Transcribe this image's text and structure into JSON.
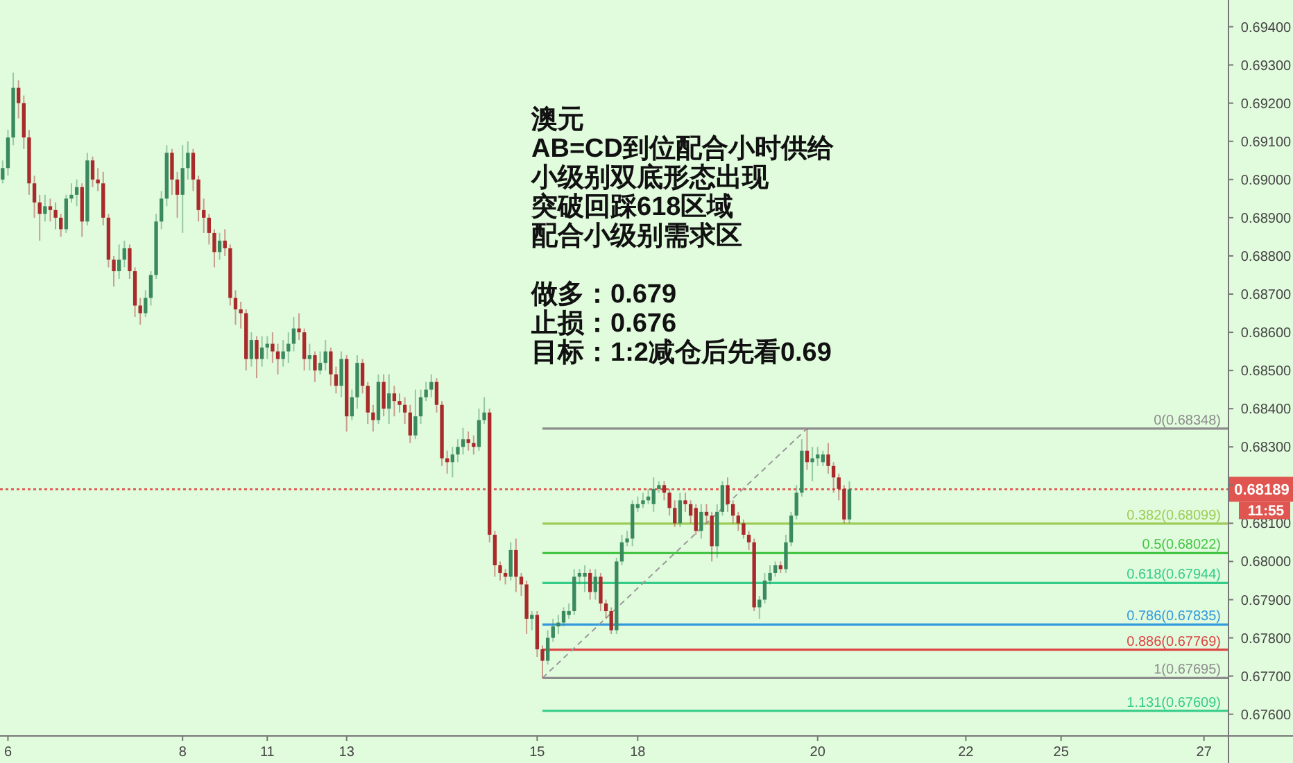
{
  "chart_data": {
    "type": "candlestick",
    "annotations": [
      "澳元",
      "AB=CD到位配合小时供给",
      "小级别双底形态出现",
      "突破回踩618区域",
      "配合小级别需求区",
      "做多：0.679",
      "止损：0.676",
      "目标：1:2减仓后先看0.69",
      "11:55"
    ],
    "colors": [
      "#3b8a5f",
      "#3b8a5f",
      "#3b8a5f",
      "#a82a2a",
      "#a82a2a",
      "#a82a2a",
      "#a82a2a",
      "#a82a2a",
      "#3b8a5f",
      "#a82a2a",
      "#a82a2a",
      "#a82a2a",
      "#3b8a5f",
      "#3b8a5f",
      "#3b8a5f",
      "#a82a2a",
      "#3b8a5f",
      "#a82a2a",
      "#a82a2a",
      "#a82a2a",
      "#a82a2a",
      "#a82a2a",
      "#3b8a5f",
      "#3b8a5f",
      "#a82a2a",
      "#a82a2a",
      "#a82a2a",
      "#3b8a5f",
      "#3b8a5f",
      "#3b8a5f",
      "#3b8a5f",
      "#3b8a5f",
      "#a82a2a",
      "#a82a2a",
      "#3b8a5f",
      "#3b8a5f",
      "#a82a2a",
      "#a82a2a",
      "#a82a2a",
      "#a82a2a",
      "#a82a2a",
      "#3b8a5f",
      "#a82a2a",
      "#a82a2a",
      "#a82a2a",
      "#a82a2a",
      "#a82a2a",
      "#3b8a5f",
      "#a82a2a",
      "#3b8a5f",
      "#3b8a5f",
      "#a82a2a",
      "#a82a2a",
      "#3b8a5f",
      "#3b8a5f",
      "#3b8a5f",
      "#a82a2a",
      "#a82a2a",
      "#3b8a5f",
      "#a82a2a",
      "#3b8a5f",
      "#3b8a5f",
      "#a82a2a",
      "#a82a2a",
      "#3b8a5f",
      "#a82a2a",
      "#3b8a5f",
      "#3b8a5f",
      "#a82a2a",
      "#a82a2a",
      "#a82a2a",
      "#3b8a5f",
      "#a82a2a",
      "#3b8a5f",
      "#a82a2a",
      "#a82a2a",
      "#a82a2a",
      "#a82a2a",
      "#3b8a5f",
      "#3b8a5f",
      "#3b8a5f",
      "#3b8a5f",
      "#a82a2a",
      "#a82a2a",
      "#a82a2a",
      "#3b8a5f",
      "#3b8a5f",
      "#3b8a5f",
      "#a82a2a",
      "#a82a2a",
      "#3b8a5f",
      "#3b8a5f",
      "#a82a2a",
      "#a82a2a",
      "#a82a2a",
      "#a82a2a",
      "#3b8a5f",
      "#a82a2a",
      "#a82a2a",
      "#a82a2a",
      "#3b8a5f",
      "#a82a2a",
      "#a82a2a",
      "#3b8a5f",
      "#3b8a5f",
      "#3b8a5f",
      "#3b8a5f",
      "#3b8a5f",
      "#3b8a5f",
      "#3b8a5f",
      "#3b8a5f",
      "#a82a2a",
      "#3b8a5f",
      "#a82a2a",
      "#a82a2a",
      "#a82a2a",
      "#3b8a5f",
      "#3b8a5f",
      "#3b8a5f",
      "#3b8a5f",
      "#3b8a5f",
      "#3b8a5f",
      "#3b8a5f",
      "#3b8a5f",
      "#3b8a5f",
      "#a82a2a",
      "#a82a2a",
      "#a82a2a",
      "#3b8a5f",
      "#a82a2a",
      "#a82a2a",
      "#a82a2a",
      "#3b8a5f",
      "#a82a2a",
      "#a82a2a",
      "#3b8a5f",
      "#3b8a5f",
      "#a82a2a",
      "#a82a2a",
      "#a82a2a",
      "#a82a2a",
      "#a82a2a",
      "#a82a2a",
      "#3b8a5f",
      "#3b8a5f",
      "#3b8a5f",
      "#3b8a5f",
      "#a82a2a",
      "#3b8a5f",
      "#3b8a5f",
      "#3b8a5f",
      "#3b8a5f",
      "#a82a2a",
      "#3b8a5f",
      "#3b8a5f",
      "#3b8a5f",
      "#a82a2a",
      "#a82a2a",
      "#a82a2a",
      "#a82a2a",
      "#3b8a5f",
      null,
      null,
      null,
      null,
      null,
      null,
      null,
      null,
      null,
      null,
      null,
      null,
      null,
      null,
      null,
      null,
      null,
      null,
      null,
      null,
      null,
      null,
      null,
      null,
      null,
      null,
      null,
      null,
      null,
      null,
      null,
      null,
      null,
      null,
      null,
      null,
      null,
      null,
      null,
      null,
      null,
      null,
      null,
      null,
      null,
      null,
      null,
      null,
      null,
      null,
      null,
      null,
      null,
      null,
      null,
      null,
      null,
      null,
      null,
      null,
      null,
      null,
      null,
      null,
      null,
      null,
      null,
      null,
      null,
      null,
      null
    ],
    "categories": [
      null,
      "6",
      null,
      null,
      null,
      null,
      null,
      null,
      null,
      null,
      null,
      null,
      null,
      null,
      null,
      null,
      null,
      null,
      null,
      null,
      null,
      null,
      null,
      null,
      null,
      null,
      null,
      null,
      null,
      null,
      null,
      null,
      null,
      null,
      "8",
      null,
      null,
      null,
      null,
      null,
      null,
      null,
      null,
      null,
      null,
      null,
      null,
      null,
      null,
      null,
      "11",
      null,
      null,
      null,
      null,
      null,
      null,
      null,
      null,
      null,
      null,
      null,
      null,
      null,
      null,
      "13",
      null,
      null,
      null,
      null,
      null,
      null,
      null,
      null,
      null,
      null,
      null,
      null,
      null,
      null,
      null,
      null,
      null,
      null,
      null,
      null,
      null,
      null,
      null,
      null,
      null,
      null,
      null,
      null,
      null,
      null,
      null,
      null,
      null,
      null,
      null,
      "15",
      null,
      null,
      null,
      null,
      null,
      null,
      null,
      null,
      null,
      null,
      null,
      null,
      null,
      null,
      null,
      null,
      null,
      null,
      "18",
      null,
      null,
      null,
      null,
      null,
      null,
      null,
      null,
      null,
      null,
      null,
      null,
      null,
      null,
      null,
      null,
      null,
      null,
      null,
      null,
      null,
      null,
      null,
      null,
      null,
      null,
      null,
      null,
      null,
      null,
      null,
      null,
      null,
      "20",
      null,
      null,
      null,
      null,
      null,
      null,
      null,
      null,
      null,
      null,
      null,
      null,
      null,
      null,
      null,
      null,
      null,
      null,
      null,
      null,
      null,
      null,
      null,
      null,
      null,
      null,
      null,
      "22",
      null,
      null,
      null,
      null,
      null,
      null,
      null,
      null,
      null,
      null,
      null,
      null,
      null,
      null,
      null,
      null,
      null,
      "25",
      null,
      null,
      null,
      null,
      null,
      null,
      null,
      null,
      null,
      null,
      null,
      null,
      null,
      null,
      null,
      null,
      null,
      null,
      null,
      null,
      null,
      null,
      null,
      null,
      null,
      null,
      "27",
      null,
      null,
      null,
      null
    ],
    "ohlc": [
      [
        0.69,
        0.6905,
        0.6899,
        0.6903
      ],
      [
        0.6903,
        0.6913,
        0.6901,
        0.6911
      ],
      [
        0.6911,
        0.6928,
        0.6909,
        0.6924
      ],
      [
        0.6924,
        0.6926,
        0.6916,
        0.692
      ],
      [
        0.692,
        0.6922,
        0.6908,
        0.6911
      ],
      [
        0.6911,
        0.6913,
        0.6896,
        0.6899
      ],
      [
        0.6899,
        0.6901,
        0.689,
        0.6894
      ],
      [
        0.6894,
        0.6896,
        0.6884,
        0.6891
      ],
      [
        0.6891,
        0.6896,
        0.6889,
        0.6893
      ],
      [
        0.6893,
        0.6895,
        0.6889,
        0.6892
      ],
      [
        0.6892,
        0.6894,
        0.6887,
        0.689
      ],
      [
        0.689,
        0.6891,
        0.6885,
        0.6887
      ],
      [
        0.6887,
        0.6896,
        0.6886,
        0.6895
      ],
      [
        0.6895,
        0.6899,
        0.6894,
        0.6896
      ],
      [
        0.6896,
        0.69,
        0.6893,
        0.6898
      ],
      [
        0.6898,
        0.6899,
        0.6885,
        0.6889
      ],
      [
        0.6889,
        0.6907,
        0.6888,
        0.6905
      ],
      [
        0.6905,
        0.6906,
        0.6898,
        0.69
      ],
      [
        0.69,
        0.6903,
        0.6897,
        0.6899
      ],
      [
        0.6899,
        0.6902,
        0.6888,
        0.689
      ],
      [
        0.689,
        0.6891,
        0.6877,
        0.6879
      ],
      [
        0.6879,
        0.688,
        0.6872,
        0.6876
      ],
      [
        0.6876,
        0.6883,
        0.6874,
        0.6879
      ],
      [
        0.6879,
        0.6884,
        0.6877,
        0.6882
      ],
      [
        0.6882,
        0.6883,
        0.6874,
        0.6876
      ],
      [
        0.6876,
        0.6877,
        0.6864,
        0.6867
      ],
      [
        0.6867,
        0.6869,
        0.6862,
        0.6865
      ],
      [
        0.6865,
        0.6871,
        0.6864,
        0.6869
      ],
      [
        0.6869,
        0.6876,
        0.6867,
        0.6875
      ],
      [
        0.6875,
        0.6891,
        0.6874,
        0.6889
      ],
      [
        0.6889,
        0.6897,
        0.6887,
        0.6895
      ],
      [
        0.6895,
        0.6909,
        0.6893,
        0.6907
      ],
      [
        0.6907,
        0.6908,
        0.6896,
        0.69
      ],
      [
        0.69,
        0.6902,
        0.689,
        0.6896
      ],
      [
        0.6896,
        0.6909,
        0.6886,
        0.6903
      ],
      [
        0.6903,
        0.691,
        0.69,
        0.6907
      ],
      [
        0.6907,
        0.6908,
        0.6897,
        0.69
      ],
      [
        0.69,
        0.6901,
        0.6889,
        0.6892
      ],
      [
        0.6892,
        0.6895,
        0.6886,
        0.689
      ],
      [
        0.689,
        0.6891,
        0.6883,
        0.6886
      ],
      [
        0.6886,
        0.6887,
        0.6877,
        0.6881
      ],
      [
        0.6881,
        0.6886,
        0.6879,
        0.6884
      ],
      [
        0.6884,
        0.6887,
        0.688,
        0.6882
      ],
      [
        0.6882,
        0.6883,
        0.6867,
        0.6869
      ],
      [
        0.6869,
        0.6871,
        0.6862,
        0.6866
      ],
      [
        0.6866,
        0.6868,
        0.6861,
        0.6865
      ],
      [
        0.6865,
        0.6866,
        0.685,
        0.6853
      ],
      [
        0.6853,
        0.686,
        0.6851,
        0.6858
      ],
      [
        0.6858,
        0.6859,
        0.6848,
        0.6853
      ],
      [
        0.6853,
        0.6859,
        0.6851,
        0.6856
      ],
      [
        0.6856,
        0.6859,
        0.6853,
        0.6857
      ],
      [
        0.6857,
        0.686,
        0.6852,
        0.6855
      ],
      [
        0.6855,
        0.6857,
        0.6849,
        0.6853
      ],
      [
        0.6853,
        0.6858,
        0.6851,
        0.6855
      ],
      [
        0.6855,
        0.686,
        0.6852,
        0.6857
      ],
      [
        0.6857,
        0.6864,
        0.6855,
        0.6861
      ],
      [
        0.6861,
        0.6865,
        0.6858,
        0.686
      ],
      [
        0.686,
        0.6861,
        0.685,
        0.6853
      ],
      [
        0.6853,
        0.6857,
        0.685,
        0.6854
      ],
      [
        0.6854,
        0.6855,
        0.6847,
        0.685
      ],
      [
        0.685,
        0.6855,
        0.6849,
        0.6852
      ],
      [
        0.6852,
        0.6858,
        0.685,
        0.6855
      ],
      [
        0.6855,
        0.6856,
        0.6846,
        0.6849
      ],
      [
        0.6849,
        0.6851,
        0.6844,
        0.6846
      ],
      [
        0.6846,
        0.6855,
        0.6843,
        0.6853
      ],
      [
        0.6853,
        0.6854,
        0.6834,
        0.6838
      ],
      [
        0.6838,
        0.6845,
        0.6837,
        0.6843
      ],
      [
        0.6843,
        0.6854,
        0.684,
        0.6852
      ],
      [
        0.6852,
        0.6853,
        0.6844,
        0.6846
      ],
      [
        0.6846,
        0.6847,
        0.6836,
        0.6839
      ],
      [
        0.6839,
        0.6841,
        0.6834,
        0.6837
      ],
      [
        0.6837,
        0.6849,
        0.6836,
        0.6847
      ],
      [
        0.6847,
        0.6849,
        0.6838,
        0.684
      ],
      [
        0.684,
        0.6849,
        0.6836,
        0.6844
      ],
      [
        0.6844,
        0.6846,
        0.6838,
        0.6842
      ],
      [
        0.6842,
        0.6844,
        0.6839,
        0.6841
      ],
      [
        0.6841,
        0.6843,
        0.6836,
        0.6839
      ],
      [
        0.6839,
        0.6841,
        0.6831,
        0.6833
      ],
      [
        0.6833,
        0.6845,
        0.6832,
        0.6838
      ],
      [
        0.6838,
        0.6845,
        0.6836,
        0.6843
      ],
      [
        0.6843,
        0.6847,
        0.6842,
        0.6845
      ],
      [
        0.6845,
        0.6849,
        0.6843,
        0.6847
      ],
      [
        0.6847,
        0.6848,
        0.6839,
        0.6841
      ],
      [
        0.6841,
        0.6842,
        0.6825,
        0.6827
      ],
      [
        0.6827,
        0.6829,
        0.6823,
        0.6826
      ],
      [
        0.6826,
        0.683,
        0.6822,
        0.6828
      ],
      [
        0.6828,
        0.6832,
        0.6826,
        0.683
      ],
      [
        0.683,
        0.6835,
        0.6828,
        0.6832
      ],
      [
        0.6832,
        0.6834,
        0.6829,
        0.6831
      ],
      [
        0.6831,
        0.6833,
        0.6828,
        0.683
      ],
      [
        0.683,
        0.684,
        0.6829,
        0.6837
      ],
      [
        0.6837,
        0.6843,
        0.6836,
        0.6839
      ],
      [
        0.6839,
        0.684,
        0.6805,
        0.6807
      ],
      [
        0.6807,
        0.6808,
        0.6796,
        0.6799
      ],
      [
        0.6799,
        0.68,
        0.6795,
        0.6797
      ],
      [
        0.6797,
        0.6798,
        0.6794,
        0.6796
      ],
      [
        0.6796,
        0.6805,
        0.6795,
        0.6803
      ],
      [
        0.6803,
        0.6806,
        0.6792,
        0.6796
      ],
      [
        0.6796,
        0.6797,
        0.6791,
        0.6794
      ],
      [
        0.6794,
        0.6795,
        0.6781,
        0.6785
      ],
      [
        0.6785,
        0.6787,
        0.6782,
        0.6786
      ],
      [
        0.6786,
        0.6787,
        0.6775,
        0.6777
      ],
      [
        0.6777,
        0.6778,
        0.67695,
        0.6774
      ],
      [
        0.6774,
        0.6782,
        0.6773,
        0.678
      ],
      [
        0.678,
        0.6785,
        0.6779,
        0.6783
      ],
      [
        0.6783,
        0.6786,
        0.6781,
        0.6784
      ],
      [
        0.6784,
        0.6788,
        0.6783,
        0.6787
      ],
      [
        0.6786,
        0.6789,
        0.6785,
        0.6787
      ],
      [
        0.6787,
        0.6798,
        0.6786,
        0.6796
      ],
      [
        0.6796,
        0.6798,
        0.6794,
        0.6797
      ],
      [
        0.6796,
        0.6799,
        0.6792,
        0.6797
      ],
      [
        0.6797,
        0.6798,
        0.679,
        0.6792
      ],
      [
        0.6792,
        0.6798,
        0.679,
        0.6796
      ],
      [
        0.6796,
        0.6797,
        0.6787,
        0.6789
      ],
      [
        0.6789,
        0.679,
        0.6785,
        0.6787
      ],
      [
        0.6787,
        0.6788,
        0.6781,
        0.6782
      ],
      [
        0.6782,
        0.6801,
        0.6781,
        0.68
      ],
      [
        0.68,
        0.6807,
        0.6799,
        0.6805
      ],
      [
        0.6805,
        0.6808,
        0.6804,
        0.6806
      ],
      [
        0.6806,
        0.6816,
        0.6804,
        0.6815
      ],
      [
        0.6814,
        0.6817,
        0.6813,
        0.6815
      ],
      [
        0.6815,
        0.6818,
        0.6814,
        0.6816
      ],
      [
        0.6816,
        0.6819,
        0.6815,
        0.6817
      ],
      [
        0.6815,
        0.6822,
        0.6813,
        0.6819
      ],
      [
        0.6819,
        0.6821,
        0.6818,
        0.682
      ],
      [
        0.682,
        0.6821,
        0.6816,
        0.6818
      ],
      [
        0.6818,
        0.6819,
        0.6812,
        0.6814
      ],
      [
        0.6814,
        0.6816,
        0.6809,
        0.681
      ],
      [
        0.681,
        0.6818,
        0.6809,
        0.6816
      ],
      [
        0.6816,
        0.6818,
        0.6813,
        0.6815
      ],
      [
        0.6815,
        0.6816,
        0.681,
        0.6812
      ],
      [
        0.6814,
        0.6815,
        0.6807,
        0.6808
      ],
      [
        0.6808,
        0.6815,
        0.6806,
        0.6813
      ],
      [
        0.6813,
        0.6815,
        0.681,
        0.6812
      ],
      [
        0.6812,
        0.6813,
        0.68,
        0.6804
      ],
      [
        0.6804,
        0.6815,
        0.6801,
        0.6813
      ],
      [
        0.6813,
        0.6821,
        0.6812,
        0.682
      ],
      [
        0.682,
        0.6822,
        0.6813,
        0.6815
      ],
      [
        0.6815,
        0.6816,
        0.681,
        0.6812
      ],
      [
        0.6812,
        0.6813,
        0.6808,
        0.681
      ],
      [
        0.681,
        0.6811,
        0.6806,
        0.6807
      ],
      [
        0.6807,
        0.6808,
        0.6803,
        0.6805
      ],
      [
        0.6805,
        0.6806,
        0.6787,
        0.6788
      ],
      [
        0.6788,
        0.6791,
        0.6785,
        0.679
      ],
      [
        0.679,
        0.6797,
        0.6789,
        0.6795
      ],
      [
        0.6795,
        0.6799,
        0.6794,
        0.6797
      ],
      [
        0.6797,
        0.68,
        0.6796,
        0.6799
      ],
      [
        0.6799,
        0.68,
        0.6797,
        0.6798
      ],
      [
        0.6798,
        0.6807,
        0.6797,
        0.6805
      ],
      [
        0.6805,
        0.6813,
        0.6804,
        0.6812
      ],
      [
        0.6812,
        0.682,
        0.6811,
        0.6818
      ],
      [
        0.6818,
        0.6832,
        0.6817,
        0.6829
      ],
      [
        0.6829,
        0.68348,
        0.6824,
        0.6826
      ],
      [
        0.6826,
        0.683,
        0.6821,
        0.6827
      ],
      [
        0.6827,
        0.683,
        0.6825,
        0.6828
      ],
      [
        0.6826,
        0.6829,
        0.6825,
        0.6828
      ],
      [
        0.6828,
        0.6831,
        0.6823,
        0.6825
      ],
      [
        0.6825,
        0.6826,
        0.6818,
        0.6822
      ],
      [
        0.6822,
        0.6823,
        0.6816,
        0.6819
      ],
      [
        0.6819,
        0.682,
        0.681,
        0.6811
      ],
      [
        0.6811,
        0.6821,
        0.681,
        0.68189
      ],
      null,
      null,
      null,
      null,
      null,
      null,
      null,
      null,
      null,
      null,
      null,
      null,
      null,
      null,
      null,
      null,
      null,
      null,
      null,
      null,
      null,
      null,
      null,
      null,
      null,
      null,
      null,
      null,
      null,
      null,
      null,
      null,
      null,
      null,
      null,
      null,
      null,
      null,
      null,
      null,
      null,
      null,
      null,
      null,
      null,
      null,
      null,
      null,
      null,
      null,
      null,
      null,
      null,
      null,
      null,
      null,
      null,
      null,
      null,
      null,
      null,
      null,
      null,
      null,
      null,
      null,
      null,
      null,
      null,
      null,
      null
    ],
    "series": [
      {
        "type": "line",
        "color": "#9a9a9a",
        "line_style": "dashed",
        "values": [
          null,
          null,
          null,
          null,
          null,
          null,
          null,
          null,
          null,
          null,
          null,
          null,
          null,
          null,
          null,
          null,
          null,
          null,
          null,
          null,
          null,
          null,
          null,
          null,
          null,
          null,
          null,
          null,
          null,
          null,
          null,
          null,
          null,
          null,
          null,
          null,
          null,
          null,
          null,
          null,
          null,
          null,
          null,
          null,
          null,
          null,
          null,
          null,
          null,
          null,
          null,
          null,
          null,
          null,
          null,
          null,
          null,
          null,
          null,
          null,
          null,
          null,
          null,
          null,
          null,
          null,
          null,
          null,
          null,
          null,
          null,
          null,
          null,
          null,
          null,
          null,
          null,
          null,
          null,
          null,
          null,
          null,
          null,
          null,
          null,
          null,
          null,
          null,
          null,
          null,
          null,
          null,
          null,
          null,
          null,
          null,
          null,
          null,
          null,
          null,
          null,
          null,
          0.67695,
          null,
          null,
          null,
          null,
          null,
          null,
          null,
          null,
          null,
          null,
          null,
          null,
          null,
          null,
          null,
          null,
          null,
          null,
          null,
          null,
          null,
          null,
          null,
          null,
          null,
          null,
          null,
          null,
          null,
          null,
          null,
          null,
          null,
          null,
          null,
          null,
          null,
          null,
          null,
          null,
          null,
          null,
          null,
          null,
          null,
          null,
          null,
          null,
          null,
          0.68348,
          null,
          null,
          null,
          null,
          null,
          null,
          null,
          null,
          null,
          null,
          null,
          null,
          null,
          null,
          null,
          null,
          null,
          null,
          null,
          null,
          null,
          null,
          null,
          null,
          null,
          null,
          null,
          null,
          null,
          null,
          null,
          null,
          null,
          null,
          null,
          null,
          null,
          null,
          null,
          null,
          null,
          null,
          null,
          null,
          null,
          null,
          null,
          null,
          null,
          null,
          null,
          null,
          null,
          null,
          null,
          null,
          null,
          null,
          null,
          null,
          null,
          null,
          null,
          null,
          null,
          null,
          null,
          null,
          null,
          null,
          null,
          null,
          null,
          null,
          null,
          null,
          null,
          null,
          null
        ]
      }
    ],
    "ylim": [
      0.67545,
      0.6947
    ],
    "yticks": [
      {
        "value": 0.676,
        "label": "0.67600"
      },
      {
        "value": 0.677,
        "label": "0.67700"
      },
      {
        "value": 0.678,
        "label": "0.67800"
      },
      {
        "value": 0.679,
        "label": "0.67900"
      },
      {
        "value": 0.68,
        "label": "0.68000"
      },
      {
        "value": 0.681,
        "label": "0.68100"
      },
      {
        "value": 0.682,
        "label": null
      },
      {
        "value": 0.683,
        "label": "0.68300"
      },
      {
        "value": 0.684,
        "label": "0.68400"
      },
      {
        "value": 0.685,
        "label": "0.68500"
      },
      {
        "value": 0.686,
        "label": "0.68600"
      },
      {
        "value": 0.687,
        "label": "0.68700"
      },
      {
        "value": 0.688,
        "label": "0.68800"
      },
      {
        "value": 0.689,
        "label": "0.68900"
      },
      {
        "value": 0.69,
        "label": "0.69000"
      },
      {
        "value": 0.691,
        "label": "0.69100"
      },
      {
        "value": 0.692,
        "label": "0.69200"
      },
      {
        "value": 0.693,
        "label": "0.69300"
      },
      {
        "value": 0.694,
        "label": "0.69400"
      }
    ],
    "ref_lines": [
      {
        "axis": "y",
        "value": 0.68348,
        "label": "0(0.68348)",
        "color": "#8c8c8c"
      },
      {
        "axis": "y",
        "value": 0.68099,
        "label": "0.382(0.68099)",
        "color": "#9ccc55"
      },
      {
        "axis": "y",
        "value": 0.68022,
        "label": "0.5(0.68022)",
        "color": "#44c444"
      },
      {
        "axis": "y",
        "value": 0.67944,
        "label": "0.618(0.67944)",
        "color": "#33cc88"
      },
      {
        "axis": "y",
        "value": 0.67835,
        "label": "0.786(0.67835)",
        "color": "#3399dd"
      },
      {
        "axis": "y",
        "value": 0.67769,
        "label": "0.886(0.67769)",
        "color": "#dd4444"
      },
      {
        "axis": "y",
        "value": 0.67695,
        "label": "1(0.67695)",
        "color": "#8c8c8c"
      },
      {
        "axis": "y",
        "value": 0.67609,
        "label": "1.131(0.67609)",
        "color": "#33cc88"
      },
      {
        "axis": "y",
        "value": 0.68189,
        "label": "0.68189",
        "color": "#e0554f",
        "line_style": "dotted"
      }
    ]
  }
}
